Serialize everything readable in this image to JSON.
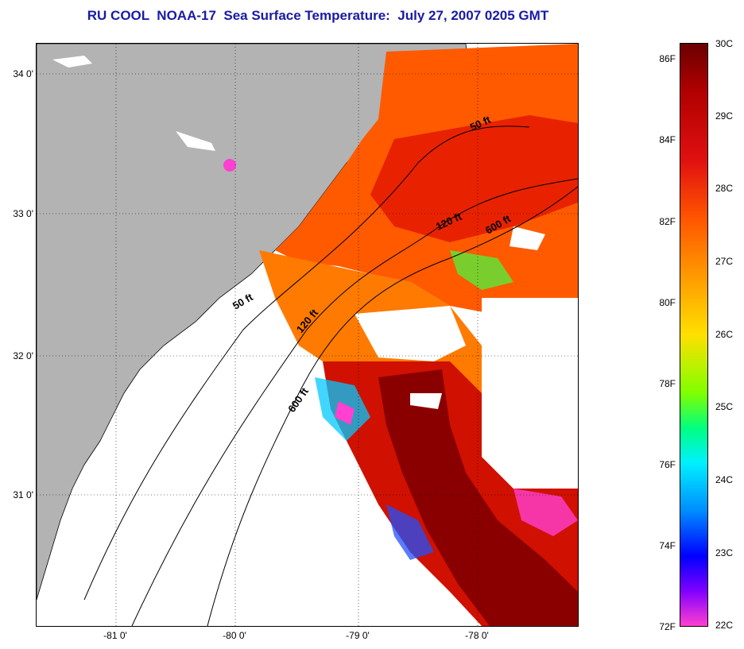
{
  "title": "RU COOL  NOAA-17  Sea Surface Temperature:  July 27, 2007 0205 GMT",
  "lat_labels": [
    "34 0'",
    "33 0'",
    "32 0'",
    "31 0'"
  ],
  "lon_labels": [
    "-81 0'",
    "-80 0'",
    "-79 0'",
    "-78 0'"
  ],
  "isobaths": [
    "50 ft",
    "120 ft",
    "600 ft"
  ],
  "colorbar": {
    "fahrenheit": [
      "86F",
      "84F",
      "82F",
      "80F",
      "78F",
      "76F",
      "74F",
      "72F"
    ],
    "celsius": [
      "30C",
      "29C",
      "28C",
      "27C",
      "26C",
      "25C",
      "24C",
      "23C",
      "22C"
    ],
    "colors": [
      "#6a0000",
      "#e01010",
      "#ff9a00",
      "#ffe000",
      "#00ff80",
      "#00f0ff",
      "#0000ff",
      "#ff40d0"
    ]
  },
  "colors": {
    "land": "#b3b3b3",
    "title": "#1a1aa6"
  }
}
